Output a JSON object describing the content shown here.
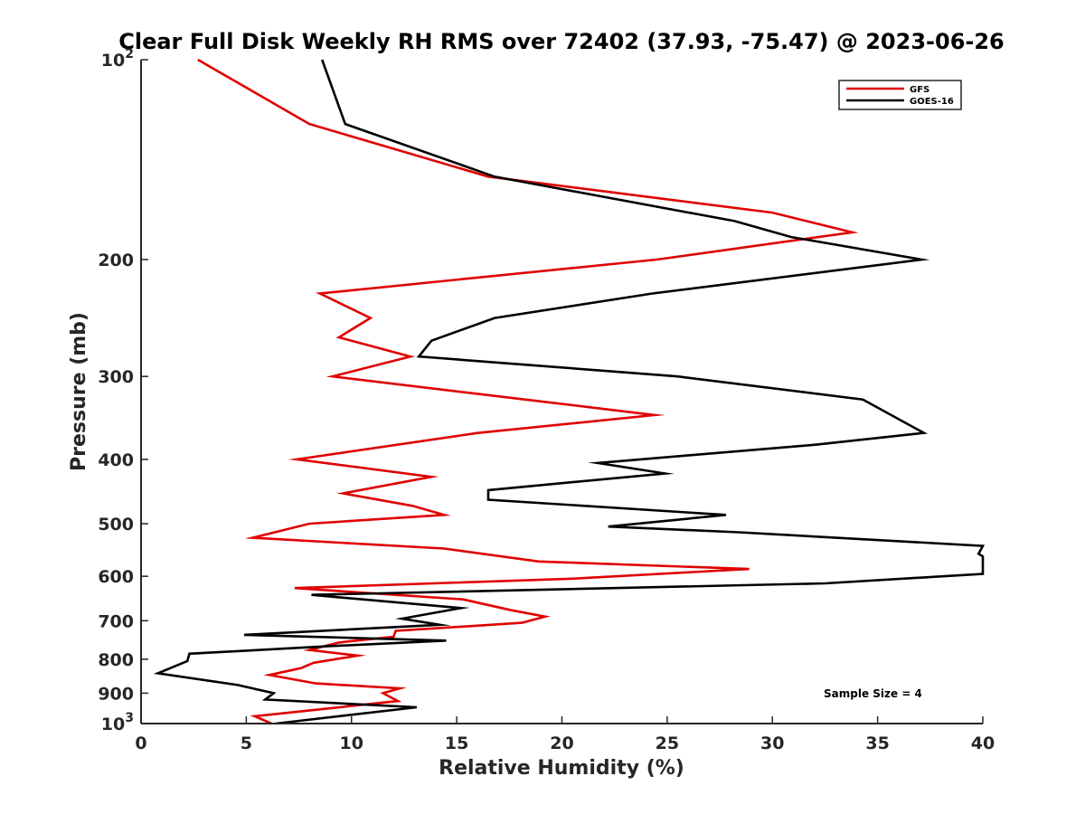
{
  "chart_data": {
    "type": "line",
    "title": "Clear Full Disk Weekly RH RMS over 72402 (37.93, -75.47) @ 2023-06-26",
    "xlabel": "Relative Humidity (%)",
    "ylabel": "Pressure (mb)",
    "xlim": [
      0,
      40
    ],
    "ylim": [
      100,
      1000
    ],
    "yscale": "log",
    "y_reversed": true,
    "grid": false,
    "x_ticks": [
      {
        "value": 0,
        "label": "0"
      },
      {
        "value": 5,
        "label": "5"
      },
      {
        "value": 10,
        "label": "10"
      },
      {
        "value": 15,
        "label": "15"
      },
      {
        "value": 20,
        "label": "20"
      },
      {
        "value": 25,
        "label": "25"
      },
      {
        "value": 30,
        "label": "30"
      },
      {
        "value": 35,
        "label": "35"
      },
      {
        "value": 40,
        "label": "40"
      }
    ],
    "y_ticks": [
      {
        "value": 100,
        "base": "10",
        "exp": "2"
      },
      {
        "value": 200,
        "base": "200",
        "exp": ""
      },
      {
        "value": 300,
        "base": "300",
        "exp": ""
      },
      {
        "value": 400,
        "base": "400",
        "exp": ""
      },
      {
        "value": 500,
        "base": "500",
        "exp": ""
      },
      {
        "value": 600,
        "base": "600",
        "exp": ""
      },
      {
        "value": 700,
        "base": "700",
        "exp": ""
      },
      {
        "value": 800,
        "base": "800",
        "exp": ""
      },
      {
        "value": 900,
        "base": "900",
        "exp": ""
      },
      {
        "value": 1000,
        "base": "10",
        "exp": "3"
      }
    ],
    "legend_position": "top-right",
    "annotation": "Sample Size = 4",
    "series": [
      {
        "name": "GFS",
        "color": "#e00000",
        "points": [
          [
            2.7,
            100
          ],
          [
            8.0,
            125
          ],
          [
            16.5,
            150
          ],
          [
            30.0,
            170
          ],
          [
            33.8,
            182
          ],
          [
            24.5,
            200
          ],
          [
            8.5,
            225
          ],
          [
            10.9,
            245
          ],
          [
            9.4,
            262
          ],
          [
            12.8,
            280
          ],
          [
            9.1,
            300
          ],
          [
            24.4,
            343
          ],
          [
            16.0,
            365
          ],
          [
            7.4,
            400
          ],
          [
            13.8,
            425
          ],
          [
            9.6,
            450
          ],
          [
            12.9,
            470
          ],
          [
            14.4,
            485
          ],
          [
            8.0,
            500
          ],
          [
            5.3,
            525
          ],
          [
            14.4,
            545
          ],
          [
            18.9,
            570
          ],
          [
            28.9,
            585
          ],
          [
            20.5,
            605
          ],
          [
            7.3,
            625
          ],
          [
            15.3,
            650
          ],
          [
            17.6,
            675
          ],
          [
            19.2,
            690
          ],
          [
            18.1,
            705
          ],
          [
            12.1,
            725
          ],
          [
            12.0,
            740
          ],
          [
            9.4,
            755
          ],
          [
            8.0,
            775
          ],
          [
            10.3,
            790
          ],
          [
            8.2,
            810
          ],
          [
            7.6,
            825
          ],
          [
            6.1,
            845
          ],
          [
            8.3,
            870
          ],
          [
            12.3,
            885
          ],
          [
            11.5,
            900
          ],
          [
            12.2,
            925
          ],
          [
            5.4,
            975
          ],
          [
            6.2,
            1000
          ]
        ]
      },
      {
        "name": "GOES-16",
        "color": "#000000",
        "points": [
          [
            8.6,
            100
          ],
          [
            9.7,
            125
          ],
          [
            16.8,
            150
          ],
          [
            28.2,
            175
          ],
          [
            30.9,
            185
          ],
          [
            37.1,
            200
          ],
          [
            24.3,
            225
          ],
          [
            16.8,
            245
          ],
          [
            13.8,
            265
          ],
          [
            13.2,
            280
          ],
          [
            25.5,
            300
          ],
          [
            34.3,
            325
          ],
          [
            37.2,
            365
          ],
          [
            32.1,
            380
          ],
          [
            21.7,
            405
          ],
          [
            24.9,
            420
          ],
          [
            16.5,
            445
          ],
          [
            16.5,
            460
          ],
          [
            27.8,
            485
          ],
          [
            22.2,
            505
          ],
          [
            28.4,
            515
          ],
          [
            40.0,
            540
          ],
          [
            39.8,
            555
          ],
          [
            40.0,
            560
          ],
          [
            40.0,
            595
          ],
          [
            32.5,
            615
          ],
          [
            8.1,
            640
          ],
          [
            15.2,
            670
          ],
          [
            12.4,
            695
          ],
          [
            14.2,
            710
          ],
          [
            4.9,
            735
          ],
          [
            14.5,
            750
          ],
          [
            8.8,
            765
          ],
          [
            2.3,
            785
          ],
          [
            2.2,
            805
          ],
          [
            0.8,
            840
          ],
          [
            4.6,
            875
          ],
          [
            6.3,
            900
          ],
          [
            5.9,
            920
          ],
          [
            13.1,
            945
          ],
          [
            6.4,
            1000
          ]
        ]
      }
    ]
  }
}
